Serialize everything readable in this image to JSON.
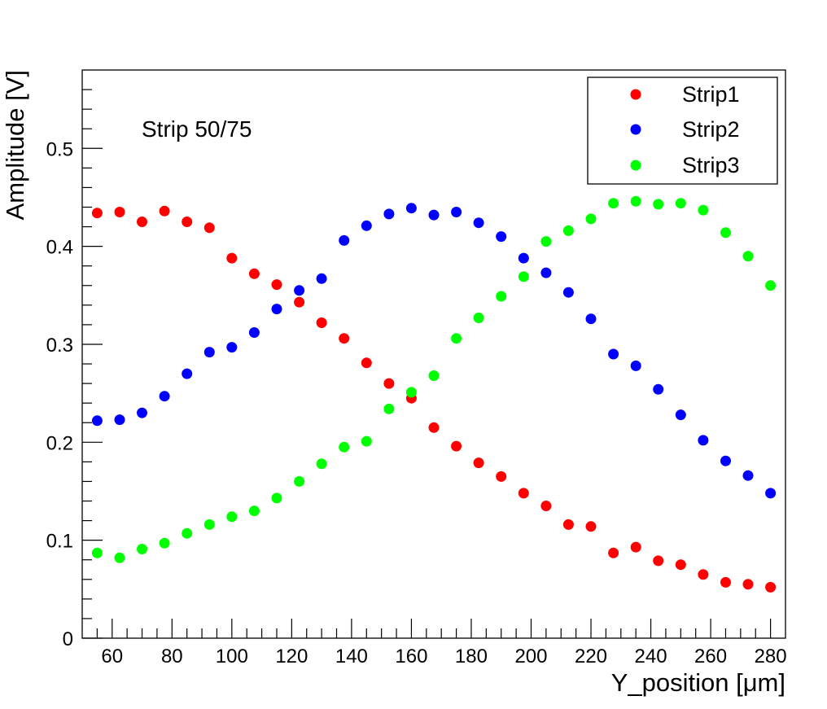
{
  "chart_data": {
    "type": "scatter",
    "title": "",
    "xlabel": "Y_position [μm]",
    "ylabel": "Amplitude [V]",
    "xlim": [
      50,
      285
    ],
    "ylim": [
      0,
      0.58
    ],
    "annotation": "Strip 50/75",
    "legend_position": "top-right",
    "x_ticks": [
      60,
      80,
      100,
      120,
      140,
      160,
      180,
      200,
      220,
      240,
      260,
      280
    ],
    "x_tick_labels": [
      "60",
      "80",
      "100",
      "120",
      "140",
      "160",
      "180",
      "200",
      "220",
      "240",
      "260",
      "280"
    ],
    "y_ticks": [
      0,
      0.1,
      0.2,
      0.3,
      0.4,
      0.5
    ],
    "y_tick_labels": [
      "0",
      "0.1",
      "0.2",
      "0.3",
      "0.4",
      "0.5"
    ],
    "x": [
      55,
      62.5,
      70,
      77.5,
      85,
      92.5,
      100,
      107.5,
      115,
      122.5,
      130,
      137.5,
      145,
      152.5,
      160,
      167.5,
      175,
      182.5,
      190,
      197.5,
      205,
      212.5,
      220,
      227.5,
      235,
      242.5,
      250,
      257.5,
      265,
      272.5,
      280
    ],
    "series": [
      {
        "name": "Strip1",
        "color": "#ff0000",
        "values": [
          0.434,
          0.435,
          0.425,
          0.436,
          0.425,
          0.419,
          0.388,
          0.372,
          0.361,
          0.343,
          0.322,
          0.306,
          0.281,
          0.26,
          0.245,
          0.215,
          0.196,
          0.179,
          0.165,
          0.148,
          0.135,
          0.116,
          0.114,
          0.087,
          0.093,
          0.079,
          0.075,
          0.065,
          0.057,
          0.055,
          0.052
        ]
      },
      {
        "name": "Strip2",
        "color": "#0000ff",
        "values": [
          0.222,
          0.223,
          0.23,
          0.247,
          0.27,
          0.292,
          0.297,
          0.312,
          0.336,
          0.355,
          0.367,
          0.406,
          0.421,
          0.433,
          0.439,
          0.432,
          0.435,
          0.424,
          0.41,
          0.388,
          0.373,
          0.353,
          0.326,
          0.29,
          0.278,
          0.254,
          0.228,
          0.202,
          0.181,
          0.166,
          0.148
        ]
      },
      {
        "name": "Strip3",
        "color": "#00ff00",
        "values": [
          0.087,
          0.082,
          0.091,
          0.097,
          0.107,
          0.116,
          0.124,
          0.13,
          0.143,
          0.16,
          0.178,
          0.195,
          0.201,
          0.234,
          0.251,
          0.268,
          0.306,
          0.327,
          0.349,
          0.369,
          0.405,
          0.416,
          0.428,
          0.444,
          0.446,
          0.443,
          0.444,
          0.437,
          0.414,
          0.39,
          0.36
        ]
      }
    ]
  }
}
